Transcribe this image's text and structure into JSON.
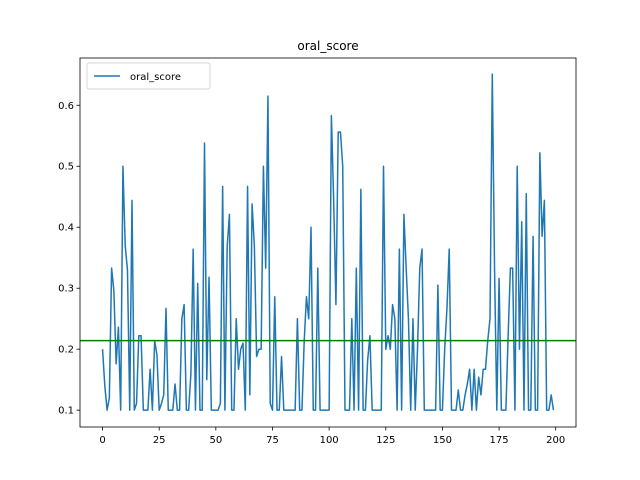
{
  "chart_data": {
    "type": "line",
    "title": "oral_score",
    "xlabel": "",
    "ylabel": "",
    "xlim": [
      -9.95,
      208.95
    ],
    "ylim": [
      0.0724,
      0.6775
    ],
    "x_ticks": [
      0,
      25,
      50,
      75,
      100,
      125,
      150,
      175,
      200
    ],
    "y_ticks": [
      0.1,
      0.2,
      0.3,
      0.4,
      0.5,
      0.6
    ],
    "y_tick_labels": [
      "0.1",
      "0.2",
      "0.3",
      "0.4",
      "0.5",
      "0.6"
    ],
    "legend": {
      "placement": "upper-left",
      "entries": [
        "oral_score"
      ]
    },
    "grid": false,
    "series": [
      {
        "name": "oral_score",
        "color": "#1f77b4",
        "x_start": 0,
        "x_step": 1,
        "values": [
          0.2,
          0.14,
          0.1,
          0.12,
          0.333,
          0.296,
          0.176,
          0.236,
          0.1,
          0.5,
          0.37,
          0.33,
          0.1,
          0.444,
          0.1,
          0.111,
          0.222,
          0.222,
          0.1,
          0.1,
          0.1,
          0.167,
          0.1,
          0.214,
          0.191,
          0.1,
          0.111,
          0.125,
          0.267,
          0.1,
          0.1,
          0.1,
          0.143,
          0.1,
          0.1,
          0.25,
          0.273,
          0.1,
          0.1,
          0.16,
          0.364,
          0.1,
          0.308,
          0.1,
          0.1,
          0.538,
          0.15,
          0.318,
          0.1,
          0.1,
          0.1,
          0.1,
          0.111,
          0.467,
          0.1,
          0.368,
          0.421,
          0.1,
          0.1,
          0.25,
          0.167,
          0.2,
          0.21,
          0.1,
          0.467,
          0.125,
          0.438,
          0.37,
          0.188,
          0.2,
          0.2,
          0.5,
          0.333,
          0.615,
          0.111,
          0.1,
          0.286,
          0.1,
          0.1,
          0.188,
          0.1,
          0.1,
          0.1,
          0.1,
          0.1,
          0.1,
          0.25,
          0.1,
          0.1,
          0.214,
          0.286,
          0.25,
          0.4,
          0.1,
          0.1,
          0.333,
          0.1,
          0.1,
          0.1,
          0.1,
          0.1,
          0.583,
          0.444,
          0.273,
          0.556,
          0.556,
          0.5,
          0.1,
          0.1,
          0.1,
          0.25,
          0.1,
          0.333,
          0.1,
          0.462,
          0.1,
          0.1,
          0.182,
          0.222,
          0.1,
          0.1,
          0.1,
          0.1,
          0.1,
          0.5,
          0.2,
          0.222,
          0.2,
          0.273,
          0.25,
          0.1,
          0.364,
          0.1,
          0.421,
          0.333,
          0.25,
          0.1,
          0.25,
          0.1,
          0.2,
          0.333,
          0.364,
          0.1,
          0.1,
          0.1,
          0.1,
          0.1,
          0.1,
          0.305,
          0.1,
          0.1,
          0.2,
          0.267,
          0.364,
          0.1,
          0.1,
          0.1,
          0.133,
          0.1,
          0.1,
          0.125,
          0.143,
          0.167,
          0.1,
          0.167,
          0.1,
          0.154,
          0.125,
          0.167,
          0.167,
          0.214,
          0.25,
          0.651,
          0.333,
          0.1,
          0.316,
          0.1,
          0.1,
          0.1,
          0.222,
          0.333,
          0.333,
          0.1,
          0.5,
          0.2,
          0.409,
          0.1,
          0.455,
          0.1,
          0.1,
          0.385,
          0.1,
          0.1,
          0.522,
          0.385,
          0.444,
          0.1,
          0.1,
          0.125,
          0.1
        ]
      }
    ],
    "hline": {
      "y": 0.214,
      "color": "#008000"
    }
  }
}
